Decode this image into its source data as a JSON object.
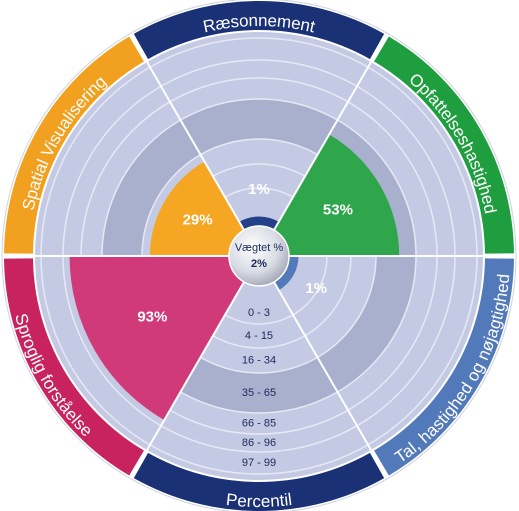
{
  "chart_data": {
    "type": "radial",
    "categories": [
      "Ræsonnement",
      "Opfattelseshastighed",
      "Tal, hastighed og nøjagtighed",
      "Percentil",
      "Sproglig forståelse",
      "Spatial Visualisering"
    ],
    "values": [
      1,
      53,
      1,
      null,
      93,
      29
    ],
    "value_labels": [
      "1%",
      "53%",
      "1%",
      null,
      "93%",
      "29%"
    ],
    "colors": [
      "#1b3176",
      "#1f9e3f",
      "#5279b9",
      "#1b3176",
      "#c8235e",
      "#f2a01f"
    ],
    "wedge_colors": [
      "#23418a",
      "#2fa64b",
      "#5279b9",
      null,
      "#d03a78",
      "#f5a623"
    ],
    "center_title": "Vægtet %",
    "center_value": 2,
    "center_value_label": "2%",
    "bands": [
      "0 - 3",
      "4 - 15",
      "16 - 34",
      "35 - 65",
      "66 - 85",
      "86 - 96",
      "97 - 99"
    ]
  }
}
